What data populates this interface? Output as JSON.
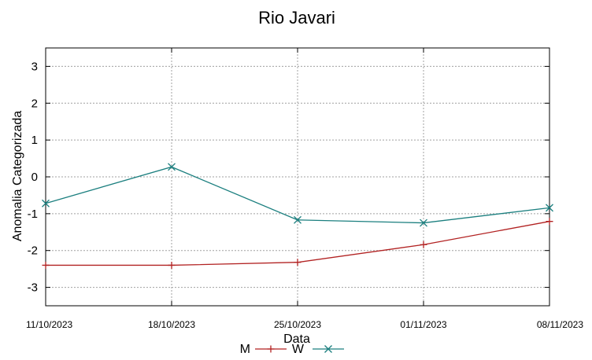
{
  "chart_data": {
    "type": "line",
    "title": "Rio Javari",
    "xlabel": "Data",
    "ylabel": "Anomalia Categorizada",
    "categories": [
      "11/10/2023",
      "18/10/2023",
      "25/10/2023",
      "01/11/2023",
      "08/11/2023"
    ],
    "yticks": [
      3,
      2,
      1,
      0,
      -1,
      -2,
      -3
    ],
    "ylim": [
      -3.5,
      3.5
    ],
    "grid": true,
    "legend_position": "bottom-center",
    "series": [
      {
        "name": "M",
        "color": "#b22222",
        "marker": "plus",
        "values": [
          -2.4,
          -2.4,
          -2.32,
          -1.84,
          -1.21
        ]
      },
      {
        "name": "W",
        "color": "#1b7f7f",
        "marker": "cross",
        "values": [
          -0.72,
          0.27,
          -1.17,
          -1.25,
          -0.84
        ]
      }
    ]
  }
}
